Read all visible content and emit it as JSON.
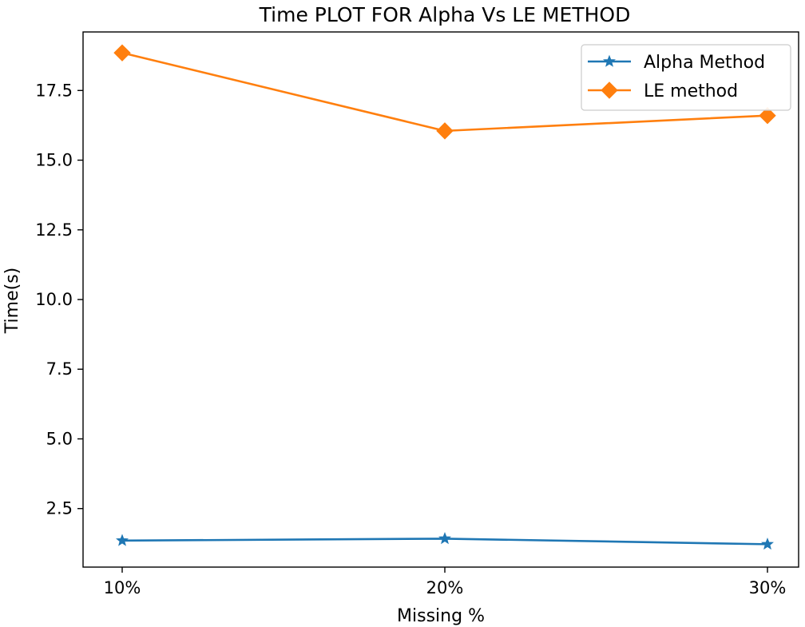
{
  "chart_data": {
    "type": "line",
    "title": "Time PLOT FOR Alpha Vs LE METHOD",
    "xlabel": "Missing %",
    "ylabel": "Time(s)",
    "categories": [
      "10%",
      "20%",
      "30%"
    ],
    "ylim": [
      0.4,
      19.6
    ],
    "yticks": [
      2.5,
      5.0,
      7.5,
      10.0,
      12.5,
      15.0,
      17.5
    ],
    "ytick_labels": [
      "2.5",
      "5.0",
      "7.5",
      "10.0",
      "12.5",
      "15.0",
      "17.5"
    ],
    "grid": false,
    "legend_position": "top-right",
    "series": [
      {
        "name": "Alpha Method",
        "values": [
          1.35,
          1.42,
          1.22
        ],
        "color": "#1f77b4",
        "marker": "star"
      },
      {
        "name": "LE method",
        "values": [
          18.85,
          16.05,
          16.6
        ],
        "color": "#ff7f0e",
        "marker": "diamond"
      }
    ]
  }
}
